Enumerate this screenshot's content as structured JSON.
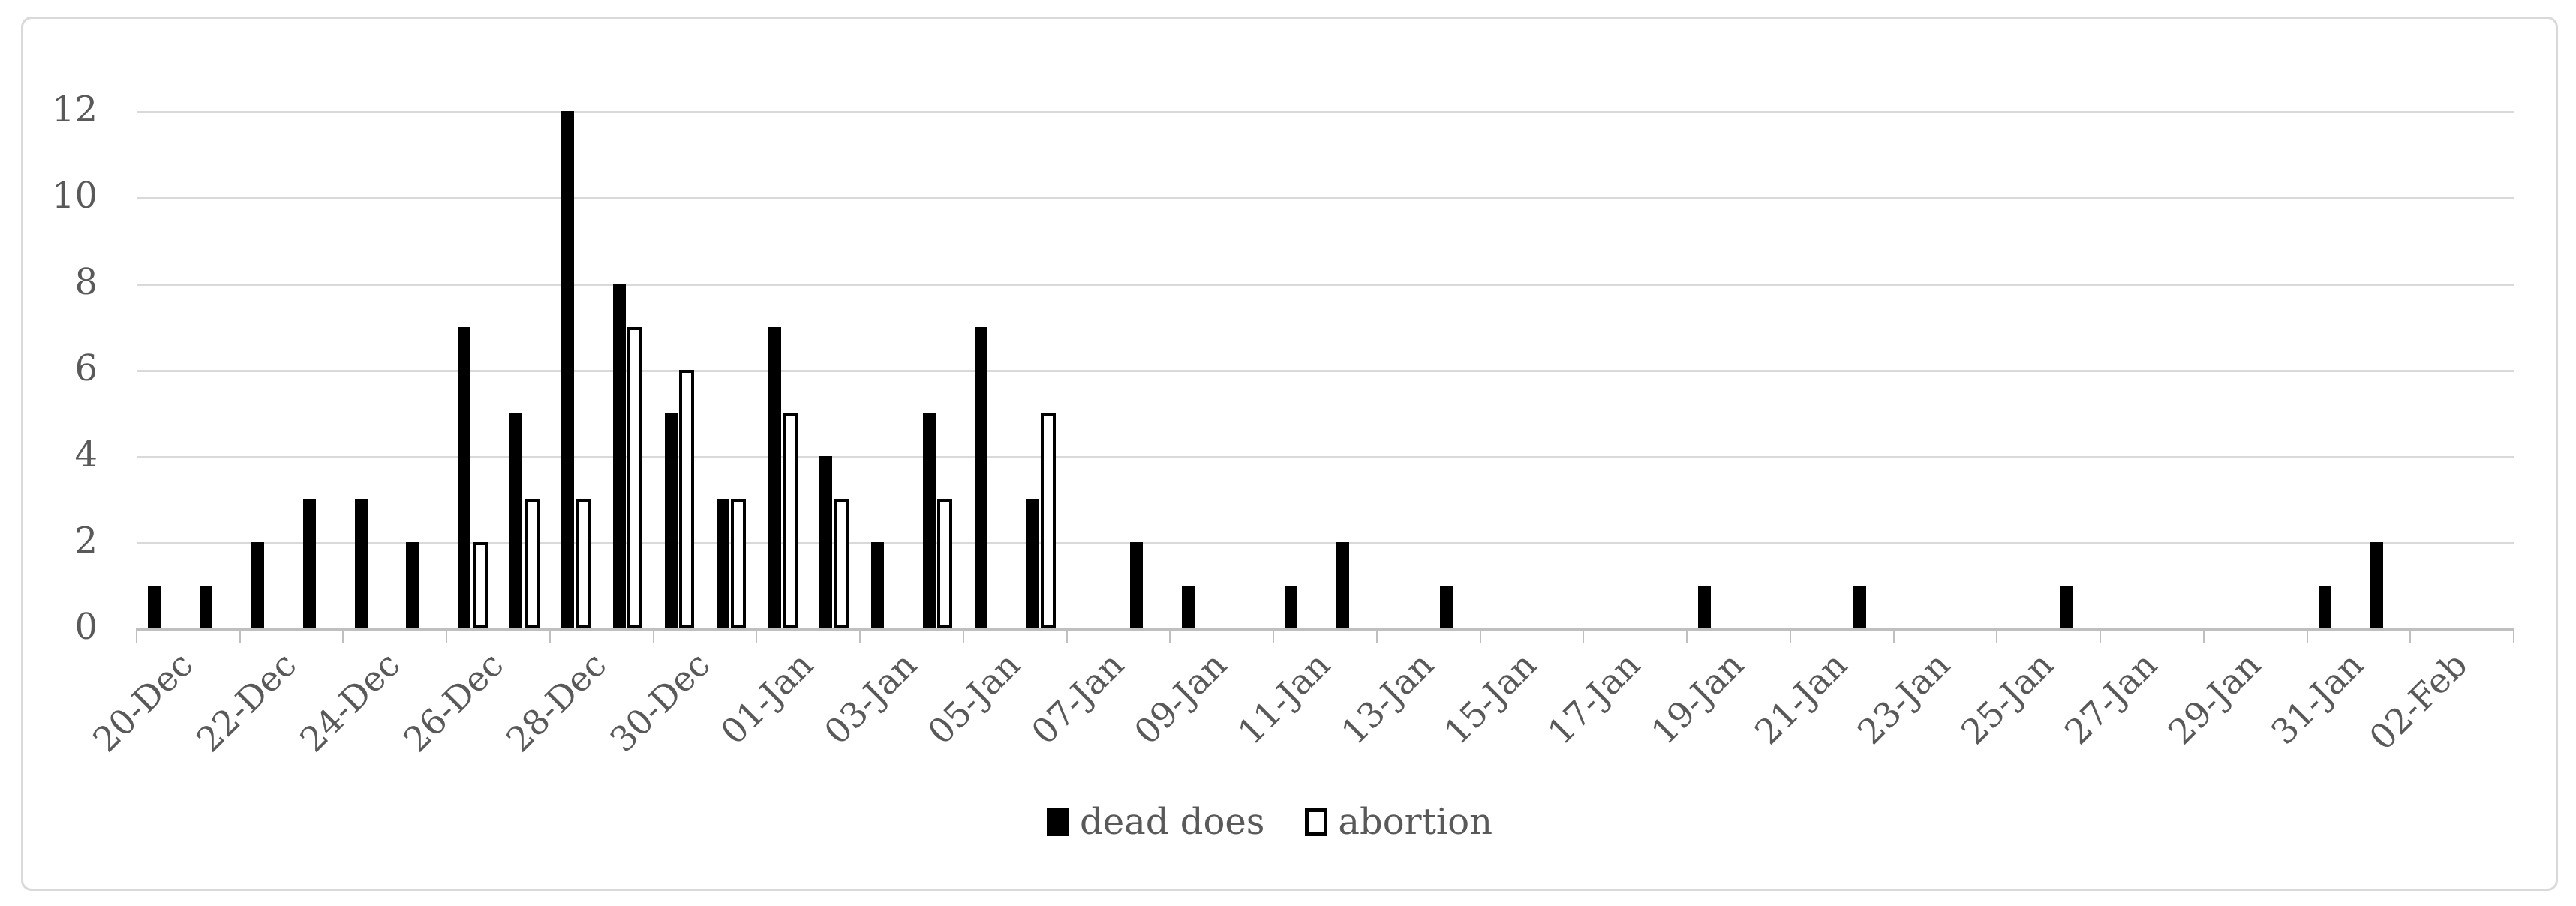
{
  "chart_data": {
    "type": "bar",
    "title": "",
    "xlabel": "",
    "ylabel": "",
    "categories": [
      "20-Dec",
      "21-Dec",
      "22-Dec",
      "23-Dec",
      "24-Dec",
      "25-Dec",
      "26-Dec",
      "27-Dec",
      "28-Dec",
      "29-Dec",
      "30-Dec",
      "31-Dec",
      "01-Jan",
      "02-Jan",
      "03-Jan",
      "04-Jan",
      "05-Jan",
      "06-Jan",
      "07-Jan",
      "08-Jan",
      "09-Jan",
      "10-Jan",
      "11-Jan",
      "12-Jan",
      "13-Jan",
      "14-Jan",
      "15-Jan",
      "16-Jan",
      "17-Jan",
      "18-Jan",
      "19-Jan",
      "20-Jan",
      "21-Jan",
      "22-Jan",
      "23-Jan",
      "24-Jan",
      "25-Jan",
      "26-Jan",
      "27-Jan",
      "28-Jan",
      "29-Jan",
      "30-Jan",
      "31-Jan",
      "01-Feb",
      "02-Feb",
      "03-Feb"
    ],
    "x_tick_label_every": 2,
    "x_tick_labels_visible": [
      "20-Dec",
      "22-Dec",
      "24-Dec",
      "26-Dec",
      "28-Dec",
      "30-Dec",
      "01-Jan",
      "03-Jan",
      "05-Jan",
      "07-Jan",
      "09-Jan",
      "11-Jan",
      "13-Jan",
      "15-Jan",
      "17-Jan",
      "19-Jan",
      "21-Jan",
      "23-Jan",
      "25-Jan",
      "27-Jan",
      "29-Jan",
      "31-Jan",
      "02-Feb"
    ],
    "series": [
      {
        "name": "dead does",
        "style": "filled",
        "color": "#000000",
        "values": [
          1,
          1,
          2,
          3,
          3,
          2,
          7,
          5,
          12,
          8,
          5,
          3,
          7,
          4,
          2,
          5,
          7,
          3,
          0,
          2,
          1,
          0,
          1,
          2,
          0,
          1,
          0,
          0,
          0,
          0,
          1,
          0,
          0,
          1,
          0,
          0,
          0,
          1,
          0,
          0,
          0,
          0,
          1,
          2,
          0,
          0
        ]
      },
      {
        "name": "abortion",
        "style": "outlined",
        "fill": "#ffffff",
        "border": "#000000",
        "values": [
          0,
          0,
          0,
          0,
          0,
          0,
          2,
          3,
          3,
          7,
          6,
          3,
          5,
          3,
          0,
          3,
          0,
          5,
          0,
          0,
          0,
          0,
          0,
          0,
          0,
          0,
          0,
          0,
          0,
          0,
          0,
          0,
          0,
          0,
          0,
          0,
          0,
          0,
          0,
          0,
          0,
          0,
          0,
          0,
          0,
          0
        ]
      }
    ],
    "ylim": [
      0,
      12
    ],
    "y_ticks": [
      "0",
      "2",
      "4",
      "6",
      "8",
      "10",
      "12"
    ],
    "grid": true,
    "legend_position": "bottom-center"
  },
  "colors": {
    "gridline": "#d9d9d9",
    "axis_line": "#bfbfbf",
    "tick_label": "#595959",
    "bar_fill": "#000000",
    "bar_outline_fill": "#ffffff",
    "chart_border": "#d9d9d9",
    "background": "#ffffff"
  }
}
